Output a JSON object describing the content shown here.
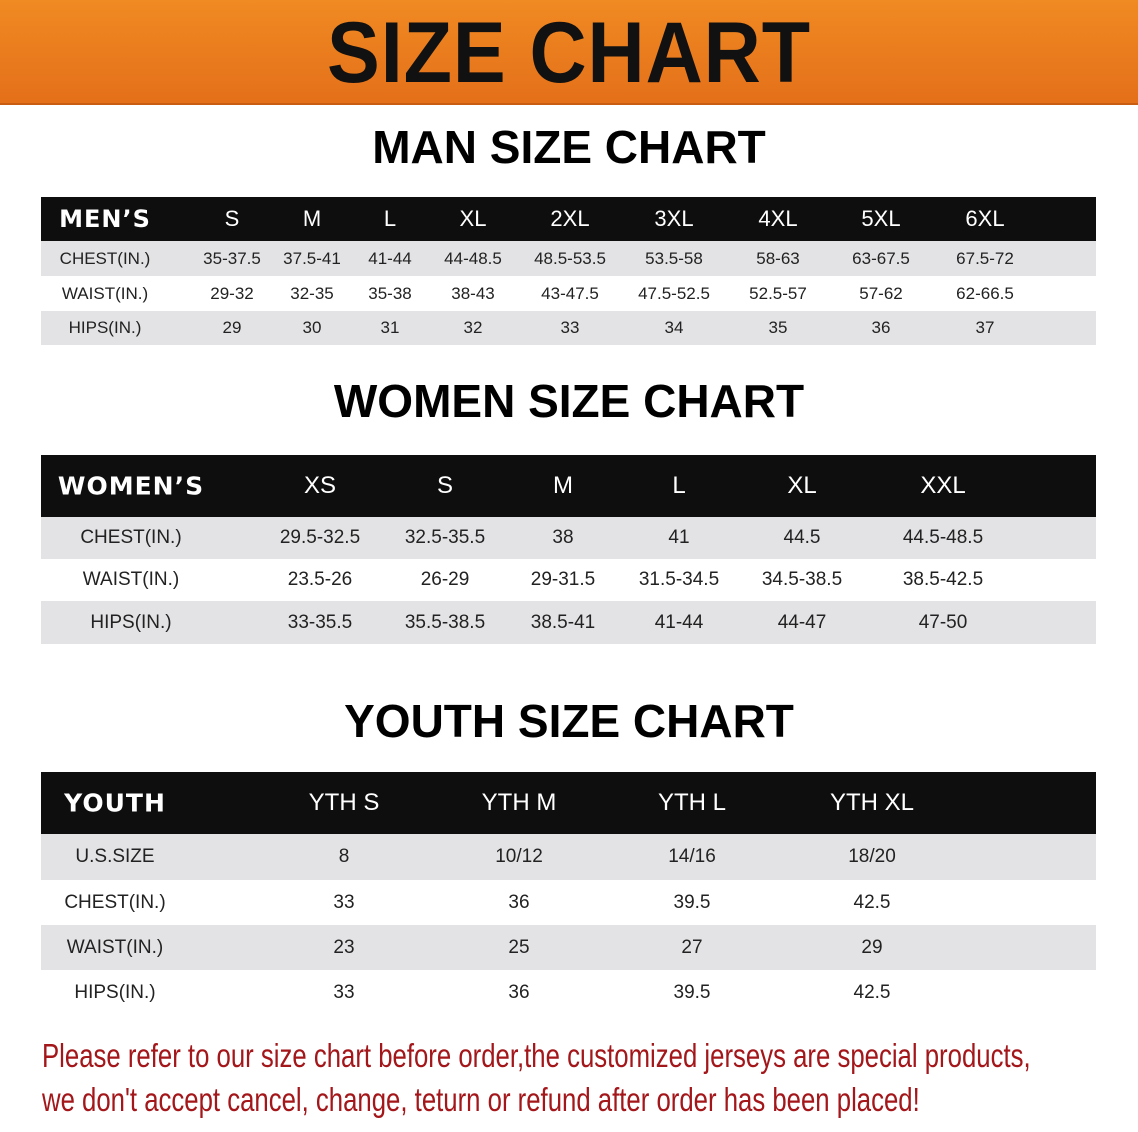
{
  "title": "SIZE CHART",
  "colors": {
    "banner": "#e97c1e",
    "header_row": "#0e0e0e",
    "stripe": "#e3e3e5",
    "note": "#a3161a"
  },
  "men": {
    "title": "MAN SIZE CHART",
    "columns": [
      "MEN’S",
      "S",
      "M",
      "L",
      "XL",
      "2XL",
      "3XL",
      "4XL",
      "5XL",
      "6XL"
    ],
    "rows": [
      [
        "CHEST(IN.)",
        "35-37.5",
        "37.5-41",
        "41-44",
        "44-48.5",
        "48.5-53.5",
        "53.5-58",
        "58-63",
        "63-67.5",
        "67.5-72"
      ],
      [
        "WAIST(IN.)",
        "29-32",
        "32-35",
        "35-38",
        "38-43",
        "43-47.5",
        "47.5-52.5",
        "52.5-57",
        "57-62",
        "62-66.5"
      ],
      [
        "HIPS(IN.)",
        "29",
        "30",
        "31",
        "32",
        "33",
        "34",
        "35",
        "36",
        "37"
      ]
    ]
  },
  "women": {
    "title": "WOMEN SIZE CHART",
    "columns": [
      "WOMEN’S",
      "XS",
      "S",
      "M",
      "L",
      "XL",
      "XXL"
    ],
    "rows": [
      [
        "CHEST(IN.)",
        "29.5-32.5",
        "32.5-35.5",
        "38",
        "41",
        "44.5",
        "44.5-48.5"
      ],
      [
        "WAIST(IN.)",
        "23.5-26",
        "26-29",
        "29-31.5",
        "31.5-34.5",
        "34.5-38.5",
        "38.5-42.5"
      ],
      [
        "HIPS(IN.)",
        "33-35.5",
        "35.5-38.5",
        "38.5-41",
        "41-44",
        "44-47",
        "47-50"
      ]
    ]
  },
  "youth": {
    "title": "YOUTH SIZE CHART",
    "columns": [
      "YOUTH",
      "YTH S",
      "YTH M",
      "YTH L",
      "YTH XL"
    ],
    "rows": [
      [
        "U.S.SIZE",
        "8",
        "10/12",
        "14/16",
        "18/20"
      ],
      [
        "CHEST(IN.)",
        "33",
        "36",
        "39.5",
        "42.5"
      ],
      [
        "WAIST(IN.)",
        "23",
        "25",
        "27",
        "29"
      ],
      [
        "HIPS(IN.)",
        "33",
        "36",
        "39.5",
        "42.5"
      ]
    ]
  },
  "notice": {
    "line1": "Please refer to our size chart before order,the customized jerseys are special products,",
    "line2": "we don't accept cancel, change, teturn or refund after order has been placed!"
  }
}
